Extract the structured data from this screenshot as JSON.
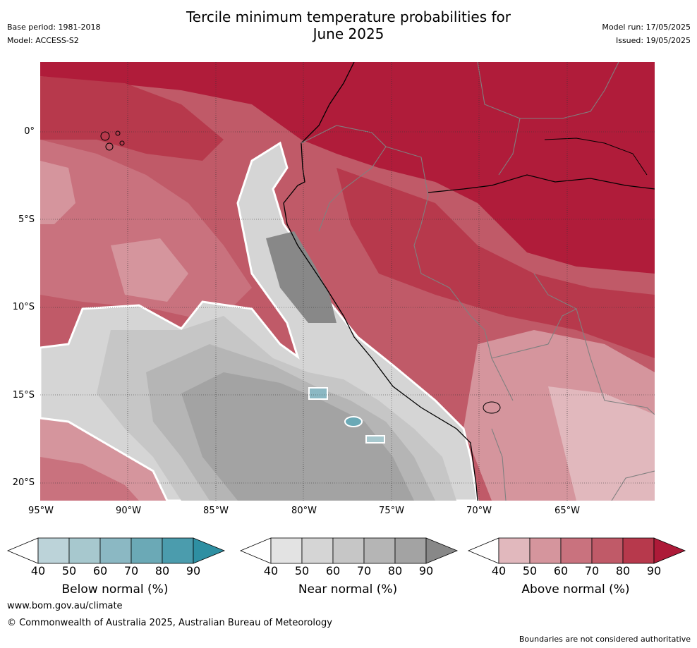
{
  "header": {
    "title_line1": "Tercile minimum temperature probabilities for",
    "title_line2": "June 2025",
    "base_period": "Base period: 1981-2018",
    "model": "Model: ACCESS-S2",
    "model_run": "Model run: 17/05/2025",
    "issued": "Issued: 19/05/2025"
  },
  "map": {
    "lat_labels": [
      "0°",
      "5°S",
      "10°S",
      "15°S",
      "20°S"
    ],
    "lon_labels": [
      "95°W",
      "90°W",
      "85°W",
      "80°W",
      "75°W",
      "70°W",
      "65°W"
    ]
  },
  "colorbars": [
    {
      "name": "Below normal (%)",
      "ticks": [
        "40",
        "50",
        "60",
        "70",
        "80",
        "90"
      ],
      "colors": [
        "#ffffff",
        "#bcd3d9",
        "#a7c8ce",
        "#8bb8c3",
        "#6ba9b6",
        "#4b9cad",
        "#2e8fa2"
      ]
    },
    {
      "name": "Near normal (%)",
      "ticks": [
        "40",
        "50",
        "60",
        "70",
        "80",
        "90"
      ],
      "colors": [
        "#ffffff",
        "#e3e3e3",
        "#d5d5d5",
        "#c6c6c6",
        "#b5b5b5",
        "#a3a3a3",
        "#888888"
      ]
    },
    {
      "name": "Above normal (%)",
      "ticks": [
        "40",
        "50",
        "60",
        "70",
        "80",
        "90"
      ],
      "colors": [
        "#ffffff",
        "#e1b8bd",
        "#d5959d",
        "#c9727e",
        "#c05a68",
        "#b7394c",
        "#ad1a38"
      ]
    }
  ],
  "footer": {
    "website": "www.bom.gov.au/climate",
    "copyright": "© Commonwealth of Australia 2025, Australian Bureau of Meteorology",
    "disclaimer": "Boundaries are not considered authoritative"
  }
}
